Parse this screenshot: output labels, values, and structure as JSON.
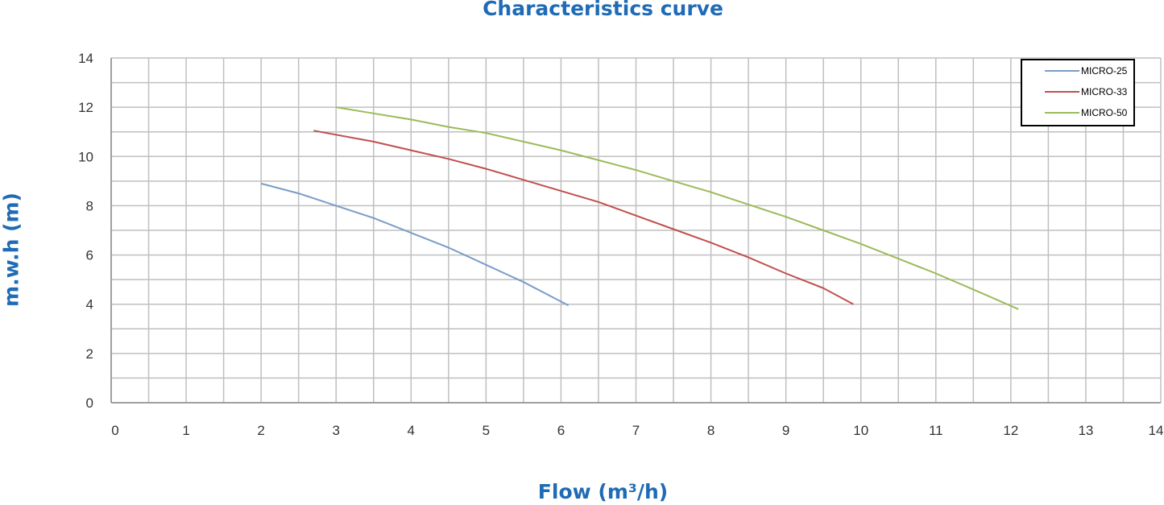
{
  "chart_data": {
    "type": "line",
    "title": "Characteristics curve",
    "xlabel": "Flow (m³/h)",
    "ylabel": "m.w.h (m)",
    "xlim": [
      0,
      14
    ],
    "ylim": [
      0,
      14
    ],
    "x_ticks": [
      "0",
      "1",
      "2",
      "3",
      "4",
      "5",
      "6",
      "7",
      "8",
      "9",
      "10",
      "11",
      "12",
      "13",
      "14"
    ],
    "y_ticks": [
      "0",
      "2",
      "4",
      "6",
      "8",
      "10",
      "12",
      "14"
    ],
    "grid": true,
    "legend_position": "top-right",
    "series": [
      {
        "name": "MICRO-25",
        "color": "#7b9cc8",
        "points": [
          [
            2.0,
            8.9
          ],
          [
            2.5,
            8.5
          ],
          [
            3.0,
            8.0
          ],
          [
            3.5,
            7.5
          ],
          [
            4.0,
            6.9
          ],
          [
            4.5,
            6.3
          ],
          [
            5.0,
            5.6
          ],
          [
            5.5,
            4.9
          ],
          [
            6.1,
            3.95
          ]
        ]
      },
      {
        "name": "MICRO-33",
        "color": "#c0504d",
        "points": [
          [
            2.7,
            11.05
          ],
          [
            3.5,
            10.6
          ],
          [
            4.0,
            10.25
          ],
          [
            4.5,
            9.9
          ],
          [
            5.0,
            9.5
          ],
          [
            5.5,
            9.05
          ],
          [
            6.0,
            8.6
          ],
          [
            6.5,
            8.15
          ],
          [
            7.0,
            7.6
          ],
          [
            7.5,
            7.05
          ],
          [
            8.0,
            6.5
          ],
          [
            8.5,
            5.9
          ],
          [
            9.0,
            5.25
          ],
          [
            9.5,
            4.65
          ],
          [
            9.9,
            4.0
          ]
        ]
      },
      {
        "name": "MICRO-50",
        "color": "#9bbb59",
        "points": [
          [
            3.0,
            12.0
          ],
          [
            3.5,
            11.75
          ],
          [
            4.0,
            11.5
          ],
          [
            4.5,
            11.2
          ],
          [
            5.0,
            10.95
          ],
          [
            5.5,
            10.6
          ],
          [
            6.0,
            10.25
          ],
          [
            6.5,
            9.85
          ],
          [
            7.0,
            9.45
          ],
          [
            7.5,
            9.0
          ],
          [
            8.0,
            8.55
          ],
          [
            8.5,
            8.05
          ],
          [
            9.0,
            7.55
          ],
          [
            9.5,
            7.0
          ],
          [
            10.0,
            6.45
          ],
          [
            10.5,
            5.85
          ],
          [
            11.0,
            5.25
          ],
          [
            11.5,
            4.6
          ],
          [
            12.1,
            3.8
          ]
        ]
      }
    ]
  }
}
